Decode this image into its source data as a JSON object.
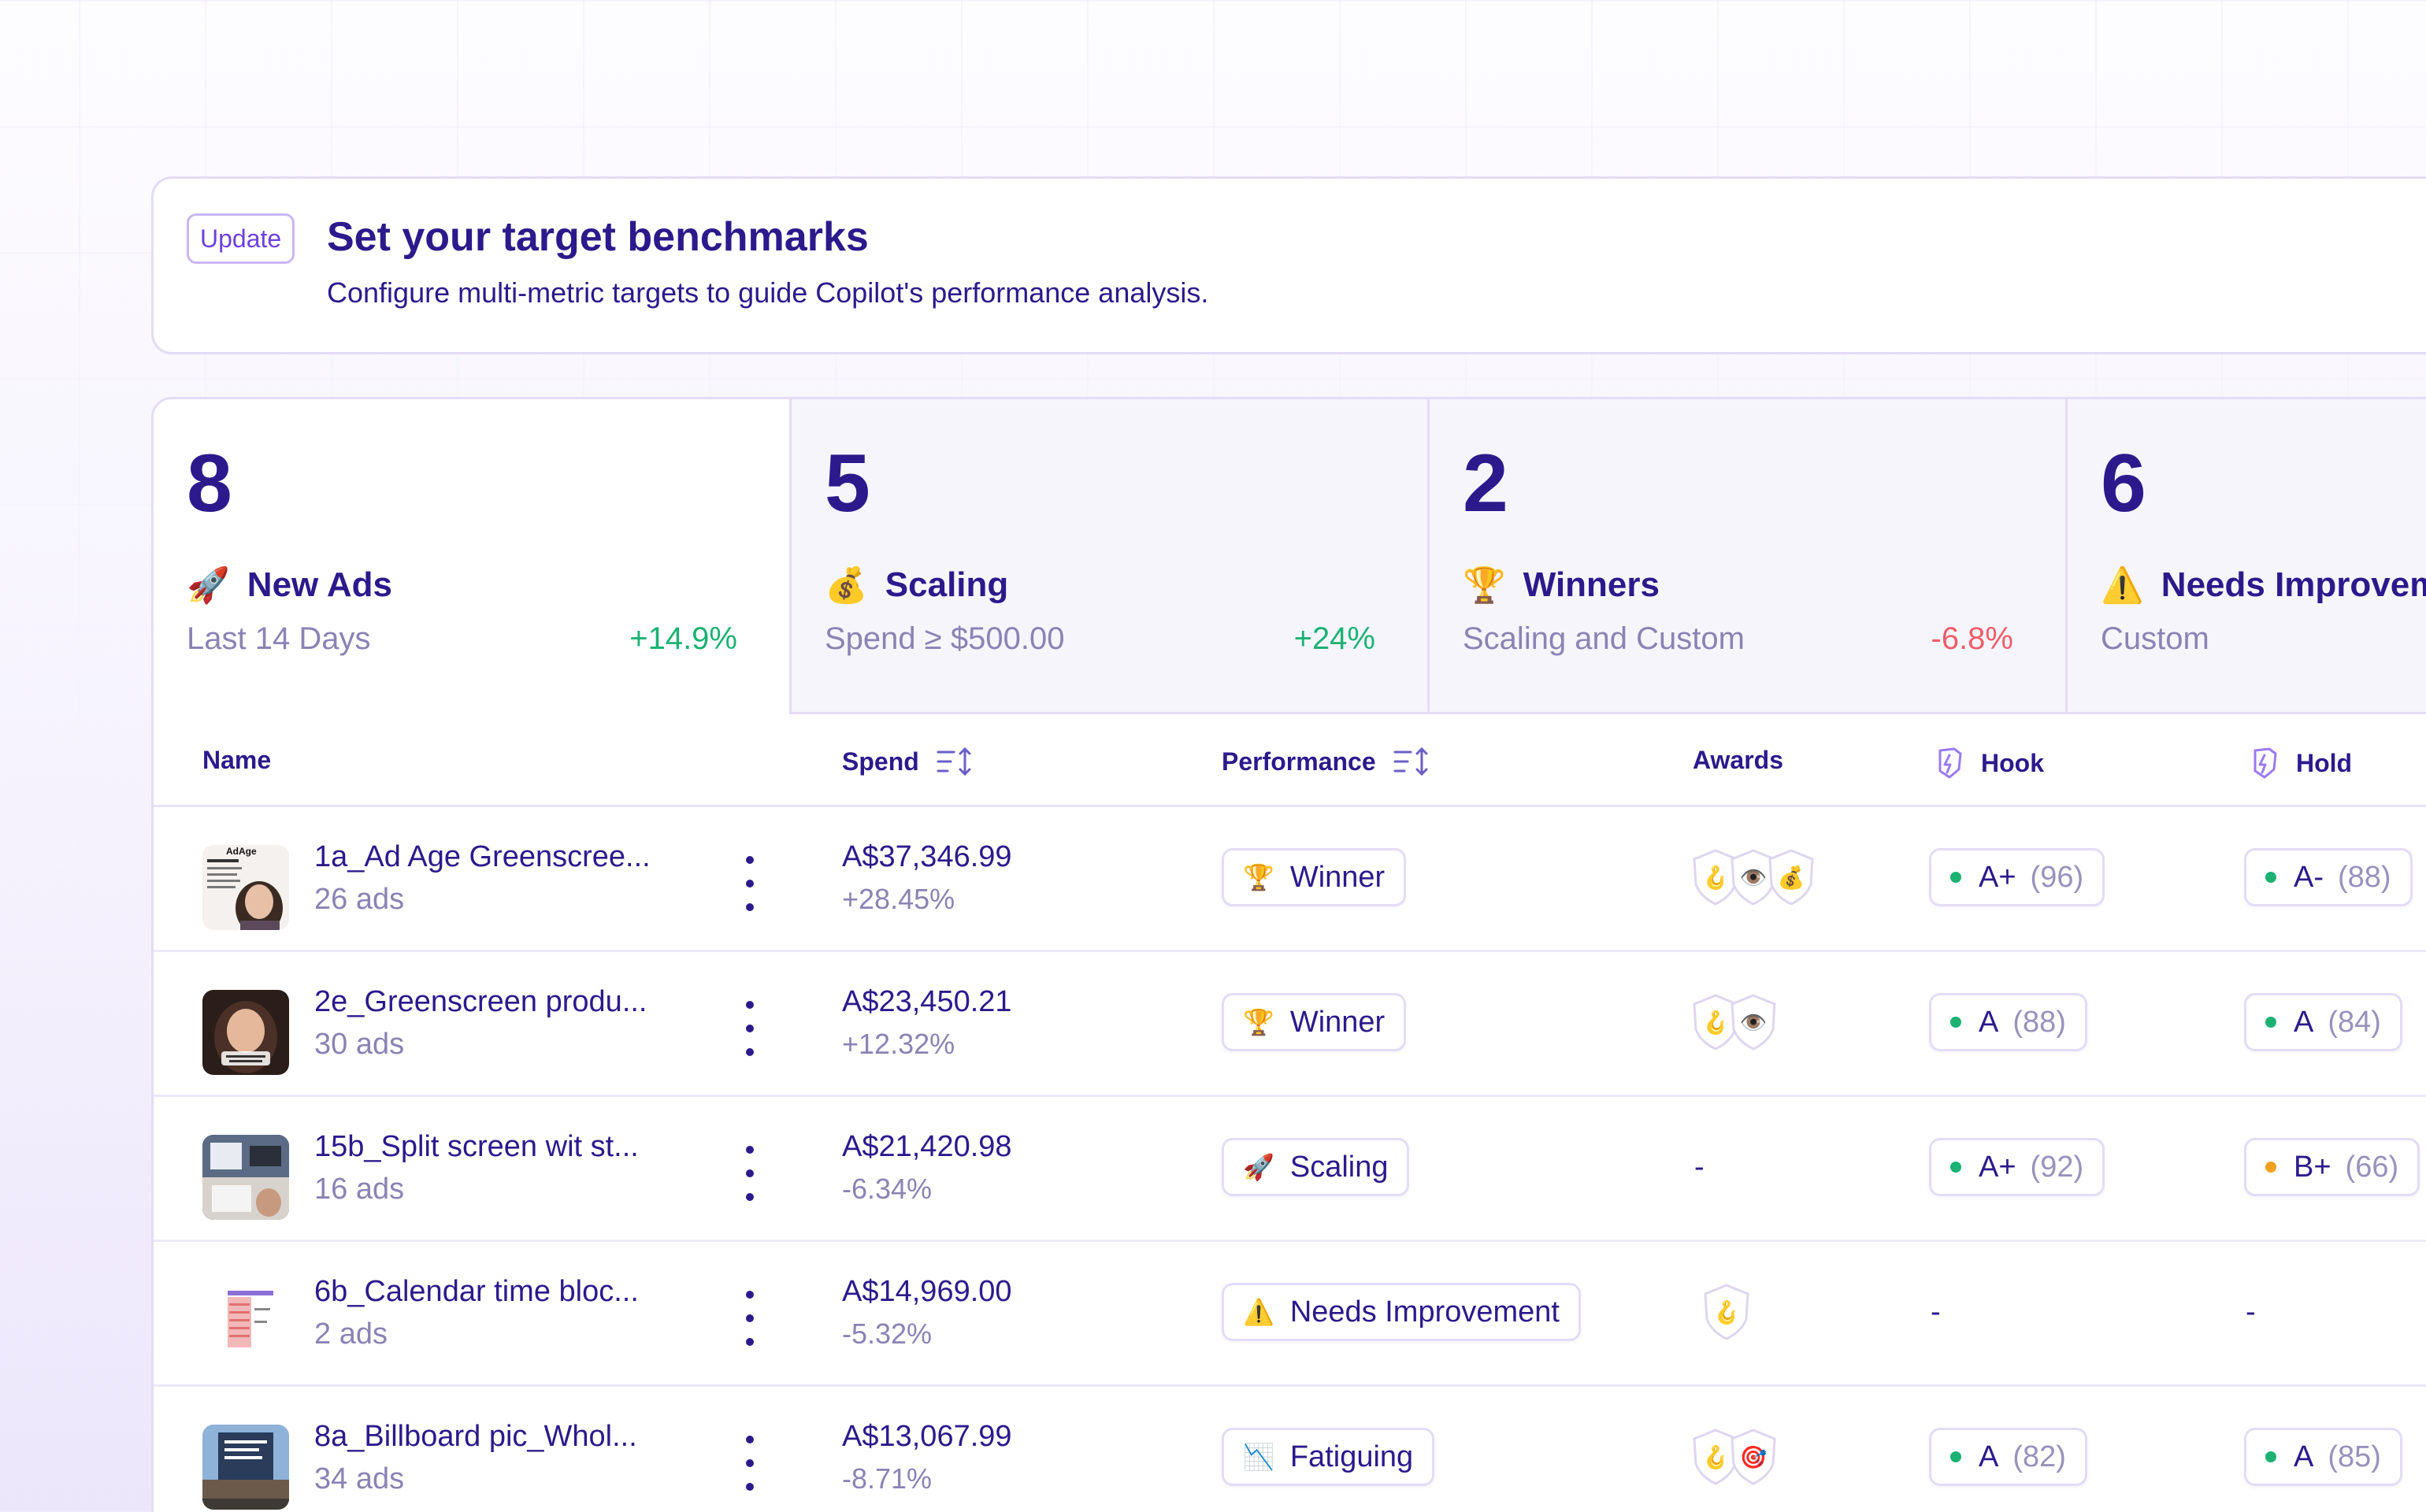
{
  "colors": {
    "primary_text": "#2c1a8c",
    "muted_text": "#8b83b4",
    "positive": "#1bb273",
    "negative": "#ef5d6a",
    "grade_good": "#1bb273",
    "grade_warn": "#f0a020",
    "accent": "#6d41e0"
  },
  "banner": {
    "badge": "Update",
    "title": "Set your target benchmarks",
    "subtitle": "Configure multi-metric targets to guide Copilot's performance analysis."
  },
  "stats": [
    {
      "count": "8",
      "icon": "rocket-emoji",
      "emoji": "🚀",
      "title": "New Ads",
      "subtitle": "Last 14 Days",
      "delta": "+14.9%",
      "delta_kind": "positive"
    },
    {
      "count": "5",
      "icon": "money-bag-emoji",
      "emoji": "💰",
      "title": "Scaling",
      "subtitle": "Spend ≥ $500.00",
      "delta": "+24%",
      "delta_kind": "positive"
    },
    {
      "count": "2",
      "icon": "trophy-emoji",
      "emoji": "🏆",
      "title": "Winners",
      "subtitle": "Scaling and Custom",
      "delta": "-6.8%",
      "delta_kind": "negative"
    },
    {
      "count": "6",
      "icon": "warning-emoji",
      "emoji": "⚠️",
      "title": "Needs Improvement",
      "subtitle": "Custom",
      "delta": "",
      "delta_kind": "positive"
    }
  ],
  "table": {
    "columns": {
      "name": "Name",
      "spend": "Spend",
      "performance": "Performance",
      "awards": "Awards",
      "hook": "Hook",
      "hold": "Hold"
    },
    "rows": [
      {
        "name": "1a_Ad Age Greenscree...",
        "ads": "26 ads",
        "spend": "A$37,346.99",
        "spend_delta": "+28.45%",
        "performance": {
          "emoji": "🏆",
          "label": "Winner"
        },
        "awards": [
          "🪝",
          "👁️",
          "💰"
        ],
        "hook": {
          "grade": "A+",
          "score": "(96)",
          "level": "good"
        },
        "hold": {
          "grade": "A-",
          "score": "(88)",
          "level": "good"
        }
      },
      {
        "name": "2e_Greenscreen produ...",
        "ads": "30 ads",
        "spend": "A$23,450.21",
        "spend_delta": "+12.32%",
        "performance": {
          "emoji": "🏆",
          "label": "Winner"
        },
        "awards": [
          "🪝",
          "👁️"
        ],
        "hook": {
          "grade": "A",
          "score": "(88)",
          "level": "good"
        },
        "hold": {
          "grade": "A",
          "score": "(84)",
          "level": "good"
        }
      },
      {
        "name": "15b_Split screen wit st...",
        "ads": "16 ads",
        "spend": "A$21,420.98",
        "spend_delta": "-6.34%",
        "performance": {
          "emoji": "🚀",
          "label": "Scaling"
        },
        "awards": [],
        "awards_empty": "-",
        "hook": {
          "grade": "A+",
          "score": "(92)",
          "level": "good"
        },
        "hold": {
          "grade": "B+",
          "score": "(66)",
          "level": "warn"
        }
      },
      {
        "name": "6b_Calendar time bloc...",
        "ads": "2 ads",
        "spend": "A$14,969.00",
        "spend_delta": "-5.32%",
        "performance": {
          "emoji": "⚠️",
          "label": "Needs Improvement"
        },
        "awards": [
          "🪝"
        ],
        "hook_empty": "-",
        "hold_empty": "-"
      },
      {
        "name": "8a_Billboard pic_Whol...",
        "ads": "34 ads",
        "spend": "A$13,067.99",
        "spend_delta": "-8.71%",
        "performance": {
          "emoji": "📉",
          "label": "Fatiguing"
        },
        "awards": [
          "🪝",
          "🎯"
        ],
        "hook": {
          "grade": "A",
          "score": "(82)",
          "level": "good"
        },
        "hold": {
          "grade": "A",
          "score": "(85)",
          "level": "good"
        }
      }
    ]
  }
}
